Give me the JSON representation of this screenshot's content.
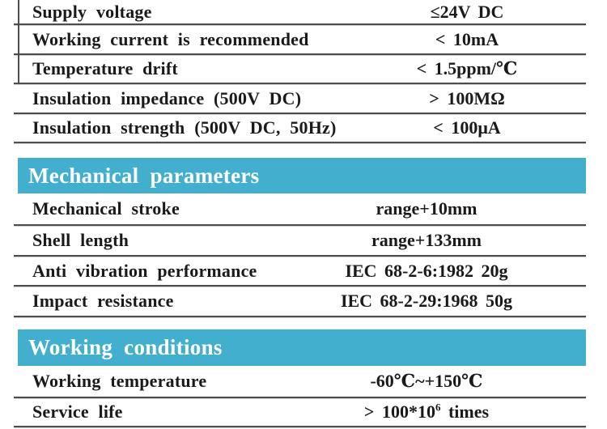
{
  "colors": {
    "accent": "#41afcd",
    "header_text": "#ffffff",
    "body_text": "#1a1a1a",
    "row_line": "#4d4d4d"
  },
  "sections": [
    {
      "name": "electrical-parameters",
      "rows": [
        {
          "label": "Supply voltage",
          "value": "≤24V DC"
        },
        {
          "label": "Working current is recommended",
          "value": "< 10mA"
        },
        {
          "label": "Temperature drift",
          "value": "< 1.5ppm/℃"
        },
        {
          "label": "Insulation impedance (500V DC)",
          "value": "> 100MΩ"
        },
        {
          "label": "Insulation strength (500V DC, 50Hz)",
          "value": "< 100μA"
        }
      ]
    },
    {
      "title": "Mechanical parameters",
      "rows": [
        {
          "label": "Mechanical stroke",
          "value": "range+10mm"
        },
        {
          "label": "Shell length",
          "value": "range+133mm"
        },
        {
          "label": "Anti vibration performance",
          "value": "IEC 68-2-6:1982 20g"
        },
        {
          "label": "Impact resistance",
          "value": "IEC 68-2-29:1968 50g"
        }
      ]
    },
    {
      "title": "Working conditions",
      "rows": [
        {
          "label": "Working temperature",
          "value": "-60℃~+150℃"
        },
        {
          "label": "Service life",
          "value_main": "> 100*10",
          "value_sup": "6",
          "value_suffix": " times"
        }
      ]
    }
  ]
}
